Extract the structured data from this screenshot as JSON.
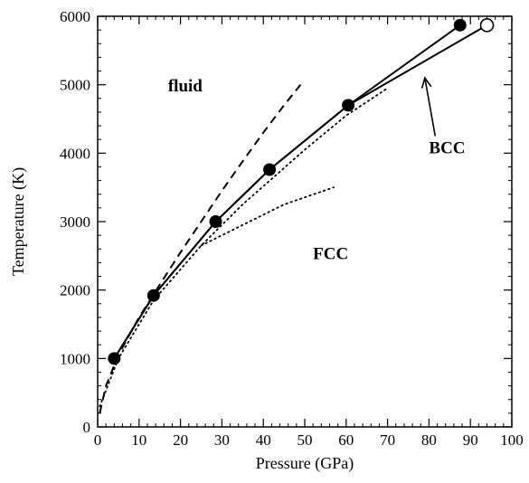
{
  "chart_data": {
    "type": "line",
    "xlabel": "Pressure (GPa)",
    "ylabel": "Temperature (K)",
    "xlim": [
      0,
      100
    ],
    "ylim": [
      0,
      6000
    ],
    "xticks": [
      0,
      10,
      20,
      30,
      40,
      50,
      60,
      70,
      80,
      90,
      100
    ],
    "yticks": [
      0,
      1000,
      2000,
      3000,
      4000,
      5000,
      6000
    ],
    "grid": false,
    "legend": "none",
    "series": [
      {
        "style": "solid-filled-markers",
        "x": [
          4,
          13.5,
          28.5,
          41.5,
          60.5,
          87.5
        ],
        "y": [
          1000,
          1920,
          3000,
          3760,
          4700,
          5870
        ]
      },
      {
        "style": "solid-line",
        "x": [
          4,
          13.5,
          28.5,
          41.5,
          60.5,
          94
        ],
        "y": [
          1000,
          1920,
          3000,
          3760,
          4700,
          5870
        ]
      },
      {
        "style": "open-marker",
        "x": [
          94
        ],
        "y": [
          5870
        ]
      },
      {
        "style": "dashed",
        "x": [
          0.5,
          2,
          5,
          10,
          15,
          20,
          25,
          30,
          35,
          40,
          45,
          49
        ],
        "y": [
          200,
          600,
          1050,
          1600,
          2080,
          2550,
          3000,
          3450,
          3880,
          4300,
          4700,
          5000
        ]
      },
      {
        "style": "dotted",
        "x": [
          0.5,
          5,
          13.5,
          25,
          35,
          50,
          60,
          70
        ],
        "y": [
          300,
          1000,
          1850,
          2650,
          3250,
          4050,
          4550,
          4950
        ]
      },
      {
        "style": "dotted",
        "x": [
          25,
          35,
          45,
          57
        ],
        "y": [
          2650,
          2950,
          3250,
          3500
        ]
      }
    ],
    "annotations": [
      {
        "text": "fluid",
        "x": 17,
        "y": 4900
      },
      {
        "text": "FCC",
        "x": 52,
        "y": 2450
      },
      {
        "text": "BCC",
        "x": 80,
        "y": 4000,
        "arrow_to": [
          79,
          5100
        ]
      }
    ]
  }
}
